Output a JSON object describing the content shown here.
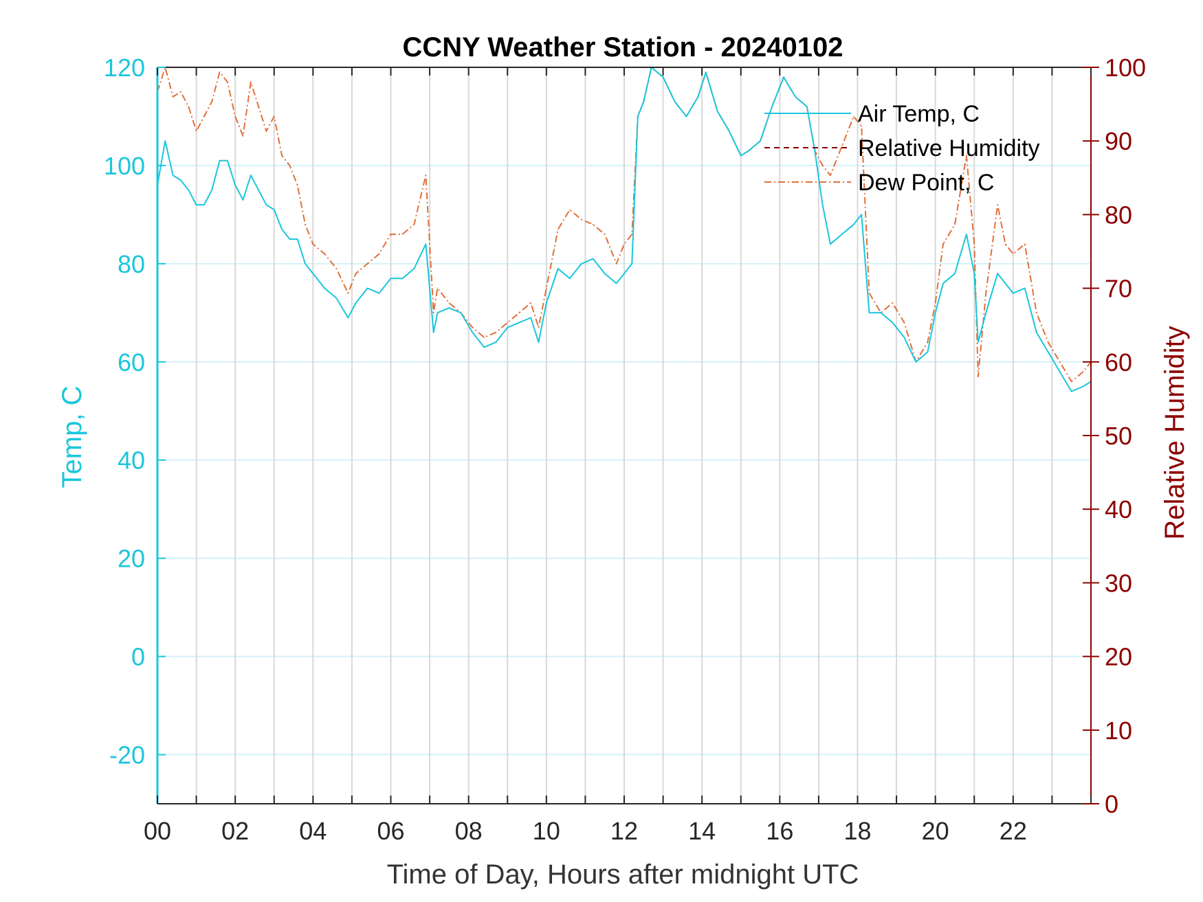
{
  "chart_data": {
    "type": "line",
    "title": "CCNY Weather Station - 20240102",
    "xlabel": "Time of Day, Hours after midnight UTC",
    "ylabel_left": "Temp, C",
    "ylabel_right": "Relative Humidity",
    "xlim": [
      0,
      24
    ],
    "ylim_left": [
      -30,
      120
    ],
    "ylim_right": [
      0,
      100
    ],
    "x_ticks": [
      0,
      2,
      4,
      6,
      8,
      10,
      12,
      14,
      16,
      18,
      20,
      22
    ],
    "x_tick_labels": [
      "00",
      "02",
      "04",
      "06",
      "08",
      "10",
      "12",
      "14",
      "16",
      "18",
      "20",
      "22"
    ],
    "y_left_ticks": [
      -20,
      0,
      20,
      40,
      60,
      80,
      100,
      120
    ],
    "y_left_tick_labels": [
      "-20",
      "0",
      "20",
      "40",
      "60",
      "80",
      "100",
      "120"
    ],
    "y_right_ticks": [
      0,
      10,
      20,
      30,
      40,
      50,
      60,
      70,
      80,
      90,
      100
    ],
    "y_right_tick_labels": [
      "0",
      "10",
      "20",
      "30",
      "40",
      "50",
      "60",
      "70",
      "80",
      "90",
      "100"
    ],
    "grid": true,
    "legend_position": "top-right",
    "colors": {
      "left_axis": "#1bc6dc",
      "right_axis": "#8b0000",
      "air_temp": "#1bc6dc",
      "relative_humidity": "#8b0000",
      "dew_point": "#e0703a",
      "grid_vertical": "#d9d9d9",
      "grid_horizontal": "#d3f2f7"
    },
    "series": [
      {
        "name": "Air Temp, C",
        "axis": "left",
        "style": "solid",
        "x": [
          0,
          0.2,
          0.4,
          0.6,
          0.8,
          1.0,
          1.2,
          1.4,
          1.6,
          1.8,
          2.0,
          2.2,
          2.4,
          2.6,
          2.8,
          3.0,
          3.2,
          3.4,
          3.6,
          3.8,
          4.0,
          4.3,
          4.6,
          4.9,
          5.1,
          5.4,
          5.7,
          6.0,
          6.3,
          6.6,
          6.9,
          7.1,
          7.2,
          7.5,
          7.8,
          8.1,
          8.4,
          8.7,
          9.0,
          9.3,
          9.6,
          9.8,
          10.0,
          10.3,
          10.6,
          10.9,
          11.2,
          11.5,
          11.8,
          12.0,
          12.2,
          12.35,
          12.5,
          12.7,
          13.0,
          13.3,
          13.6,
          13.9,
          14.1,
          14.4,
          14.7,
          15.0,
          15.2,
          15.5,
          15.8,
          16.1,
          16.4,
          16.7,
          16.9,
          17.1,
          17.3,
          17.6,
          17.9,
          18.1,
          18.3,
          18.6,
          18.9,
          19.2,
          19.5,
          19.8,
          20.0,
          20.2,
          20.5,
          20.8,
          21.0,
          21.1,
          21.3,
          21.6,
          21.8,
          22.0,
          22.3,
          22.6,
          22.9,
          23.2,
          23.5,
          23.8,
          24.0
        ],
        "values": [
          96,
          105,
          98,
          97,
          95,
          92,
          92,
          95,
          101,
          101,
          96,
          93,
          98,
          95,
          92,
          91,
          87,
          85,
          85,
          80,
          78,
          75,
          73,
          69,
          72,
          75,
          74,
          77,
          77,
          79,
          84,
          66,
          70,
          71,
          70,
          66,
          63,
          64,
          67,
          68,
          69,
          64,
          72,
          79,
          77,
          80,
          81,
          78,
          76,
          78,
          80,
          110,
          113,
          120,
          118,
          113,
          110,
          114,
          119,
          111,
          107,
          102,
          103,
          105,
          112,
          118,
          114,
          112,
          103,
          92,
          84,
          86,
          88,
          90,
          70,
          70,
          68,
          65,
          60,
          62,
          70,
          76,
          78,
          86,
          78,
          64,
          70,
          78,
          76,
          74,
          75,
          66,
          62,
          58,
          54,
          55,
          56
        ]
      },
      {
        "name": "Relative Humidity",
        "axis": "right",
        "style": "dashed",
        "x": [],
        "values": []
      },
      {
        "name": "Dew Point, C",
        "axis": "left",
        "style": "dash-dot",
        "x": [
          0,
          0.2,
          0.4,
          0.6,
          0.8,
          1.0,
          1.2,
          1.4,
          1.6,
          1.8,
          2.0,
          2.2,
          2.4,
          2.6,
          2.8,
          3.0,
          3.2,
          3.4,
          3.6,
          3.8,
          4.0,
          4.3,
          4.6,
          4.9,
          5.1,
          5.4,
          5.7,
          6.0,
          6.3,
          6.6,
          6.9,
          7.1,
          7.2,
          7.5,
          7.8,
          8.1,
          8.4,
          8.7,
          9.0,
          9.3,
          9.6,
          9.8,
          10.0,
          10.3,
          10.6,
          10.9,
          11.2,
          11.5,
          11.8,
          12.0,
          12.2,
          12.35,
          12.5,
          12.7,
          13.0,
          13.3,
          13.6,
          13.9,
          14.1,
          14.4,
          14.7,
          15.0,
          15.2,
          15.5,
          15.8,
          16.1,
          16.4,
          16.7,
          16.9,
          17.1,
          17.3,
          17.6,
          17.9,
          18.1,
          18.3,
          18.6,
          18.9,
          19.2,
          19.5,
          19.8,
          20.0,
          20.2,
          20.5,
          20.8,
          21.0,
          21.1,
          21.3,
          21.6,
          21.8,
          22.0,
          22.3,
          22.6,
          22.9,
          23.2,
          23.5,
          23.8,
          24.0
        ],
        "values": [
          115,
          120,
          114,
          115,
          112,
          107,
          110,
          113,
          119,
          117,
          110,
          106,
          117,
          112,
          107,
          110,
          102,
          100,
          96,
          88,
          84,
          82,
          79,
          74,
          78,
          80,
          82,
          86,
          86,
          88,
          98,
          70,
          75,
          72,
          70,
          67,
          65,
          66,
          68,
          70,
          72,
          67,
          75,
          87,
          91,
          89,
          88,
          86,
          80,
          84,
          86,
          110,
          113,
          120,
          118,
          113,
          110,
          114,
          119,
          111,
          107,
          102,
          103,
          105,
          112,
          118,
          114,
          112,
          103,
          100,
          98,
          104,
          110,
          108,
          74,
          70,
          72,
          68,
          60,
          64,
          72,
          84,
          88,
          102,
          84,
          57,
          74,
          92,
          84,
          82,
          84,
          70,
          64,
          60,
          56,
          58,
          60
        ]
      }
    ]
  }
}
